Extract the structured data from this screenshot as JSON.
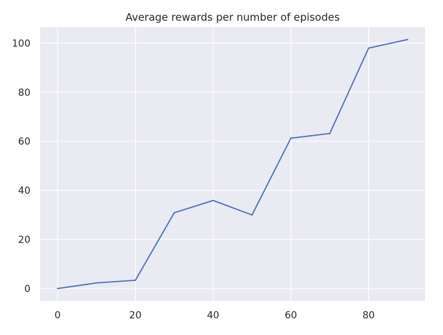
{
  "chart_data": {
    "type": "line",
    "title": "Average rewards per number of episodes",
    "xlabel": "",
    "ylabel": "",
    "x": [
      0,
      10,
      20,
      30,
      40,
      50,
      60,
      70,
      80,
      90
    ],
    "series": [
      {
        "values": [
          0,
          2.3,
          3.4,
          30.9,
          35.9,
          30.0,
          61.3,
          63.2,
          98.0,
          101.5
        ],
        "color": "#4c72b0"
      }
    ],
    "xlim": [
      -4.5,
      94.5
    ],
    "ylim": [
      -5.1,
      106.6
    ],
    "xticks": [
      0,
      20,
      40,
      60,
      80
    ],
    "yticks": [
      0,
      20,
      40,
      60,
      80,
      100
    ],
    "grid": true,
    "legend": "none",
    "colors": {
      "plot_background": "#eaeaf2",
      "gridline": "#ffffff",
      "text": "#262626"
    }
  }
}
